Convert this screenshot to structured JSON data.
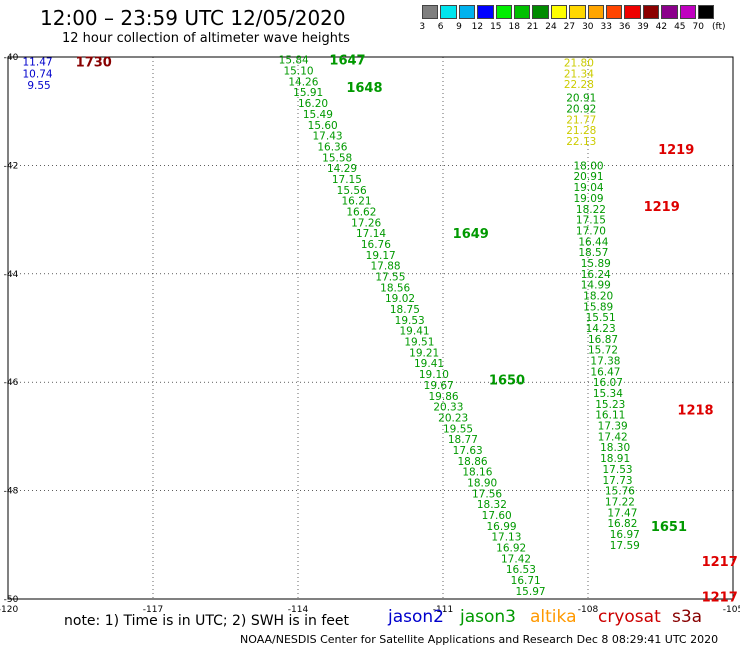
{
  "header": {
    "title": "12:00 – 23:59 UTC 12/05/2020",
    "subtitle": "12 hour collection of altimeter wave heights"
  },
  "color_scale": {
    "labels": [
      "3",
      "6",
      "9",
      "12",
      "15",
      "18",
      "21",
      "24",
      "27",
      "30",
      "33",
      "36",
      "39",
      "42",
      "45",
      "70"
    ],
    "unit": "(ft)",
    "colors": [
      "#7f7f7f",
      "#00e5ee",
      "#00b2ee",
      "#0000ff",
      "#00ee00",
      "#00c000",
      "#008b00",
      "#ffff00",
      "#ffd700",
      "#ffa500",
      "#ff4500",
      "#ee0000",
      "#8b0000",
      "#8b008b",
      "#c000c0",
      "#000000"
    ]
  },
  "footer": {
    "note": "note:  1) Time is in UTC;  2) SWH is in feet",
    "credit": "NOAA/NESDIS Center for Satellite Applications and Research    Dec  8 08:29:41 UTC 2020",
    "satellites": [
      {
        "name": "jason2",
        "color": "#0000cc"
      },
      {
        "name": "jason3",
        "color": "#009900"
      },
      {
        "name": "altika",
        "color": "#ff9900"
      },
      {
        "name": "cryosat",
        "color": "#cc0000"
      },
      {
        "name": "s3a",
        "color": "#880000"
      }
    ]
  },
  "chart_data": {
    "type": "scatter",
    "xlim": [
      -120,
      -105
    ],
    "ylim": [
      -50,
      -40
    ],
    "x_ticks": [
      -120,
      -117,
      -114,
      -111,
      -108,
      -105
    ],
    "y_ticks": [
      -40,
      -42,
      -44,
      -46,
      -48,
      -50
    ],
    "grid": true,
    "time_labels": [
      {
        "text": "1730",
        "x": -118.6,
        "y": -40.08,
        "color": "#880000"
      },
      {
        "text": "1647",
        "x": -113.35,
        "y": -40.05,
        "color": "#009900"
      },
      {
        "text": "1648",
        "x": -113.0,
        "y": -40.55,
        "color": "#009900"
      },
      {
        "text": "1649",
        "x": -110.8,
        "y": -43.25,
        "color": "#009900"
      },
      {
        "text": "1650",
        "x": -110.05,
        "y": -45.95,
        "color": "#009900"
      },
      {
        "text": "1651",
        "x": -106.7,
        "y": -48.65,
        "color": "#009900"
      },
      {
        "text": "1219",
        "x": -106.55,
        "y": -41.7,
        "color": "#dd0000"
      },
      {
        "text": "1219",
        "x": -106.85,
        "y": -42.75,
        "color": "#dd0000"
      },
      {
        "text": "1218",
        "x": -106.15,
        "y": -46.5,
        "color": "#dd0000"
      },
      {
        "text": "1217",
        "x": -105.65,
        "y": -49.3,
        "color": "#dd0000"
      },
      {
        "text": "1217",
        "x": -105.65,
        "y": -49.95,
        "color": "#dd0000"
      }
    ],
    "series": [
      {
        "name": "jason2",
        "color": "#0000cc",
        "points": [
          {
            "x": -119.7,
            "y": -40.08,
            "v": "11.47"
          },
          {
            "x": -119.7,
            "y": -40.3,
            "v": "10.74"
          },
          {
            "x": -119.6,
            "y": -40.52,
            "v": "9.55"
          }
        ]
      },
      {
        "name": "jason3",
        "color": "#009900",
        "points": [
          {
            "x": -114.4,
            "y": -40.05,
            "v": "15.84"
          },
          {
            "x": -114.3,
            "y": -40.25,
            "v": "15.10"
          },
          {
            "x": -114.2,
            "y": -40.45,
            "v": "14.26"
          },
          {
            "x": -114.1,
            "y": -40.65,
            "v": "15.91"
          },
          {
            "x": -114.0,
            "y": -40.85,
            "v": "16.20"
          },
          {
            "x": -113.9,
            "y": -41.05,
            "v": "15.49"
          },
          {
            "x": -113.8,
            "y": -41.25,
            "v": "15.60"
          },
          {
            "x": -113.7,
            "y": -41.45,
            "v": "17.43"
          },
          {
            "x": -113.6,
            "y": -41.65,
            "v": "16.36"
          },
          {
            "x": -113.5,
            "y": -41.85,
            "v": "15.58"
          },
          {
            "x": -113.4,
            "y": -42.05,
            "v": "14.29"
          },
          {
            "x": -113.3,
            "y": -42.25,
            "v": "17.15"
          },
          {
            "x": -113.2,
            "y": -42.45,
            "v": "15.56"
          },
          {
            "x": -113.1,
            "y": -42.65,
            "v": "16.21"
          },
          {
            "x": -113.0,
            "y": -42.85,
            "v": "16.62"
          },
          {
            "x": -112.9,
            "y": -43.05,
            "v": "17.26"
          },
          {
            "x": -112.8,
            "y": -43.25,
            "v": "17.14"
          },
          {
            "x": -112.7,
            "y": -43.45,
            "v": "16.76"
          },
          {
            "x": -112.6,
            "y": -43.65,
            "v": "19.17"
          },
          {
            "x": -112.5,
            "y": -43.85,
            "v": "17.88"
          },
          {
            "x": -112.4,
            "y": -44.05,
            "v": "17.55"
          },
          {
            "x": -112.3,
            "y": -44.25,
            "v": "18.56"
          },
          {
            "x": -112.2,
            "y": -44.45,
            "v": "19.02"
          },
          {
            "x": -112.1,
            "y": -44.65,
            "v": "18.75"
          },
          {
            "x": -112.0,
            "y": -44.85,
            "v": "19.53"
          },
          {
            "x": -111.9,
            "y": -45.05,
            "v": "19.41"
          },
          {
            "x": -111.8,
            "y": -45.25,
            "v": "19.51"
          },
          {
            "x": -111.7,
            "y": -45.45,
            "v": "19.21"
          },
          {
            "x": -111.6,
            "y": -45.65,
            "v": "19.41"
          },
          {
            "x": -111.5,
            "y": -45.85,
            "v": "19.10"
          },
          {
            "x": -111.4,
            "y": -46.05,
            "v": "19.67"
          },
          {
            "x": -111.3,
            "y": -46.25,
            "v": "19.86"
          },
          {
            "x": -111.2,
            "y": -46.45,
            "v": "20.33"
          },
          {
            "x": -111.1,
            "y": -46.65,
            "v": "20.23"
          },
          {
            "x": -111.0,
            "y": -46.85,
            "v": "19.55"
          },
          {
            "x": -110.9,
            "y": -47.05,
            "v": "18.77"
          },
          {
            "x": -110.8,
            "y": -47.25,
            "v": "17.63"
          },
          {
            "x": -110.7,
            "y": -47.45,
            "v": "18.86"
          },
          {
            "x": -110.6,
            "y": -47.65,
            "v": "18.16"
          },
          {
            "x": -110.5,
            "y": -47.85,
            "v": "18.90"
          },
          {
            "x": -110.4,
            "y": -48.05,
            "v": "17.56"
          },
          {
            "x": -110.3,
            "y": -48.25,
            "v": "18.32"
          },
          {
            "x": -110.2,
            "y": -48.45,
            "v": "17.60"
          },
          {
            "x": -110.1,
            "y": -48.65,
            "v": "16.99"
          },
          {
            "x": -110.0,
            "y": -48.85,
            "v": "17.13"
          },
          {
            "x": -109.9,
            "y": -49.05,
            "v": "16.92"
          },
          {
            "x": -109.8,
            "y": -49.25,
            "v": "17.42"
          },
          {
            "x": -109.7,
            "y": -49.45,
            "v": "16.53"
          },
          {
            "x": -109.6,
            "y": -49.65,
            "v": "16.71"
          },
          {
            "x": -109.5,
            "y": -49.85,
            "v": "15.97"
          }
        ]
      },
      {
        "name": "altika",
        "color": "#cccc00",
        "points": [
          {
            "x": -108.5,
            "y": -40.1,
            "v": "21.80"
          },
          {
            "x": -108.5,
            "y": -40.3,
            "v": "21.34"
          },
          {
            "x": -108.5,
            "y": -40.5,
            "v": "22.28"
          },
          {
            "x": -108.45,
            "y": -41.15,
            "v": "21.77"
          },
          {
            "x": -108.45,
            "y": -41.35,
            "v": "21.28"
          },
          {
            "x": -108.45,
            "y": -41.55,
            "v": "22.13"
          }
        ]
      },
      {
        "name": "cryosat",
        "color": "#009900",
        "points": [
          {
            "x": -108.45,
            "y": -40.75,
            "v": "20.91"
          },
          {
            "x": -108.45,
            "y": -40.95,
            "v": "20.92"
          },
          {
            "x": -108.3,
            "y": -42.0,
            "v": "18.00"
          },
          {
            "x": -108.3,
            "y": -42.2,
            "v": "20.91"
          },
          {
            "x": -108.3,
            "y": -42.4,
            "v": "19.04"
          },
          {
            "x": -108.3,
            "y": -42.6,
            "v": "19.09"
          },
          {
            "x": -108.25,
            "y": -42.8,
            "v": "18.22"
          },
          {
            "x": -108.25,
            "y": -43.0,
            "v": "17.15"
          },
          {
            "x": -108.25,
            "y": -43.2,
            "v": "17.70"
          },
          {
            "x": -108.2,
            "y": -43.4,
            "v": "16.44"
          },
          {
            "x": -108.2,
            "y": -43.6,
            "v": "18.57"
          },
          {
            "x": -108.15,
            "y": -43.8,
            "v": "15.89"
          },
          {
            "x": -108.15,
            "y": -44.0,
            "v": "16.24"
          },
          {
            "x": -108.15,
            "y": -44.2,
            "v": "14.99"
          },
          {
            "x": -108.1,
            "y": -44.4,
            "v": "18.20"
          },
          {
            "x": -108.1,
            "y": -44.6,
            "v": "15.89"
          },
          {
            "x": -108.05,
            "y": -44.8,
            "v": "15.51"
          },
          {
            "x": -108.05,
            "y": -45.0,
            "v": "14.23"
          },
          {
            "x": -108.0,
            "y": -45.2,
            "v": "16.87"
          },
          {
            "x": -108.0,
            "y": -45.4,
            "v": "15.72"
          },
          {
            "x": -107.95,
            "y": -45.6,
            "v": "17.38"
          },
          {
            "x": -107.95,
            "y": -45.8,
            "v": "16.47"
          },
          {
            "x": -107.9,
            "y": -46.0,
            "v": "16.07"
          },
          {
            "x": -107.9,
            "y": -46.2,
            "v": "15.34"
          },
          {
            "x": -107.85,
            "y": -46.4,
            "v": "15.23"
          },
          {
            "x": -107.85,
            "y": -46.6,
            "v": "16.11"
          },
          {
            "x": -107.8,
            "y": -46.8,
            "v": "17.39"
          },
          {
            "x": -107.8,
            "y": -47.0,
            "v": "17.42"
          },
          {
            "x": -107.75,
            "y": -47.2,
            "v": "18.30"
          },
          {
            "x": -107.75,
            "y": -47.4,
            "v": "18.91"
          },
          {
            "x": -107.7,
            "y": -47.6,
            "v": "17.53"
          },
          {
            "x": -107.7,
            "y": -47.8,
            "v": "17.73"
          },
          {
            "x": -107.65,
            "y": -48.0,
            "v": "15.76"
          },
          {
            "x": -107.65,
            "y": -48.2,
            "v": "17.22"
          },
          {
            "x": -107.6,
            "y": -48.4,
            "v": "17.47"
          },
          {
            "x": -107.6,
            "y": -48.6,
            "v": "16.82"
          },
          {
            "x": -107.55,
            "y": -48.8,
            "v": "16.97"
          },
          {
            "x": -107.55,
            "y": -49.0,
            "v": "17.59"
          }
        ]
      }
    ]
  }
}
